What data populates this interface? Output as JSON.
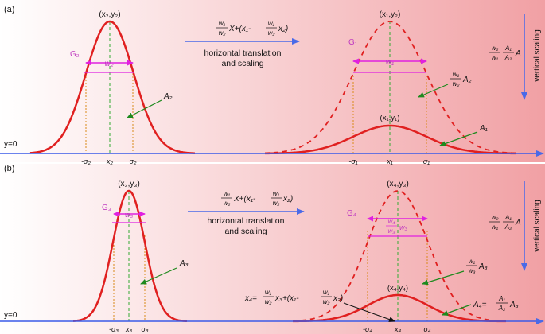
{
  "panels": [
    {
      "label": "(a)",
      "y0_label": "y=0",
      "left_peak": "(x₂,y₂)",
      "left_group": "G₂",
      "left_width": "w₂",
      "left_area": "A₂",
      "left_ticks": [
        "-σ₂",
        "x₂",
        "σ₂"
      ],
      "transform_line1": "horizontal translation",
      "transform_line2": "and scaling",
      "right_peak_top": "(x₁,y₂)",
      "right_group": "G₁",
      "right_width": "w₁",
      "right_area_scaled": "A₂",
      "right_peak_small": "(x₁,y₁)",
      "right_area": "A₁",
      "right_ticks": [
        "-σ₁",
        "x₁",
        "σ₁"
      ],
      "vertical_scaling": "vertical scaling",
      "formula_num_w": "w₁",
      "formula_den_w": "w₂",
      "formula_x": "X+(x₁-",
      "formula_tail": "x₂)",
      "scale_w_num": "w₂",
      "scale_w_den": "w₁",
      "scale_a_num": "A₁",
      "scale_a_den": "A₂",
      "scale_a": "A",
      "ratio_num": "w₁",
      "ratio_den": "w₂"
    },
    {
      "label": "(b)",
      "y0_label": "y=0",
      "left_peak": "(x₃,y₃)",
      "left_group": "G₃",
      "left_width": "w₃",
      "left_area": "A₃",
      "left_ticks": [
        "-σ₃",
        "x₃",
        "σ₃"
      ],
      "transform_line1": "horizontal translation",
      "transform_line2": "and scaling",
      "right_peak_top": "(x₄,y₃)",
      "right_group": "G₄",
      "right_width_num": "w₄",
      "right_width_den": "w₃",
      "right_width_tail": "w₃",
      "right_area_scaled": "A₃",
      "right_peak_small": "(x₄,y₄)",
      "right_area_eq": "A₄=",
      "right_area_num": "A₁",
      "right_area_den": "A₂",
      "right_area_tail": "A₃",
      "x4_eq": "x₄=",
      "x4_num": "w₁",
      "x4_den": "w₂",
      "x4_mid": "x₃+(x₁-",
      "x4_num2": "w₁",
      "x4_den2": "w₂",
      "x4_tail": "x₂)",
      "right_ticks": [
        "-σ₄",
        "x₄",
        "σ₄"
      ],
      "vertical_scaling": "vertical scaling",
      "formula_num_w": "w₁",
      "formula_den_w": "w₂",
      "formula_x": "X+(x₁-",
      "formula_tail": "x₂)",
      "scale_w_num": "w₂",
      "scale_w_den": "w₁",
      "scale_a_num": "A₁",
      "scale_a_den": "A₂",
      "scale_a": "A",
      "ratio_num": "w₁",
      "ratio_den": "w₃"
    }
  ],
  "colors": {
    "curve": "#e02020",
    "axis": "#3a5ae8",
    "median": "#33aa33",
    "sigma": "#d98a1a",
    "width_bar": "#e020e0",
    "arrow": "#2a8a2a"
  }
}
